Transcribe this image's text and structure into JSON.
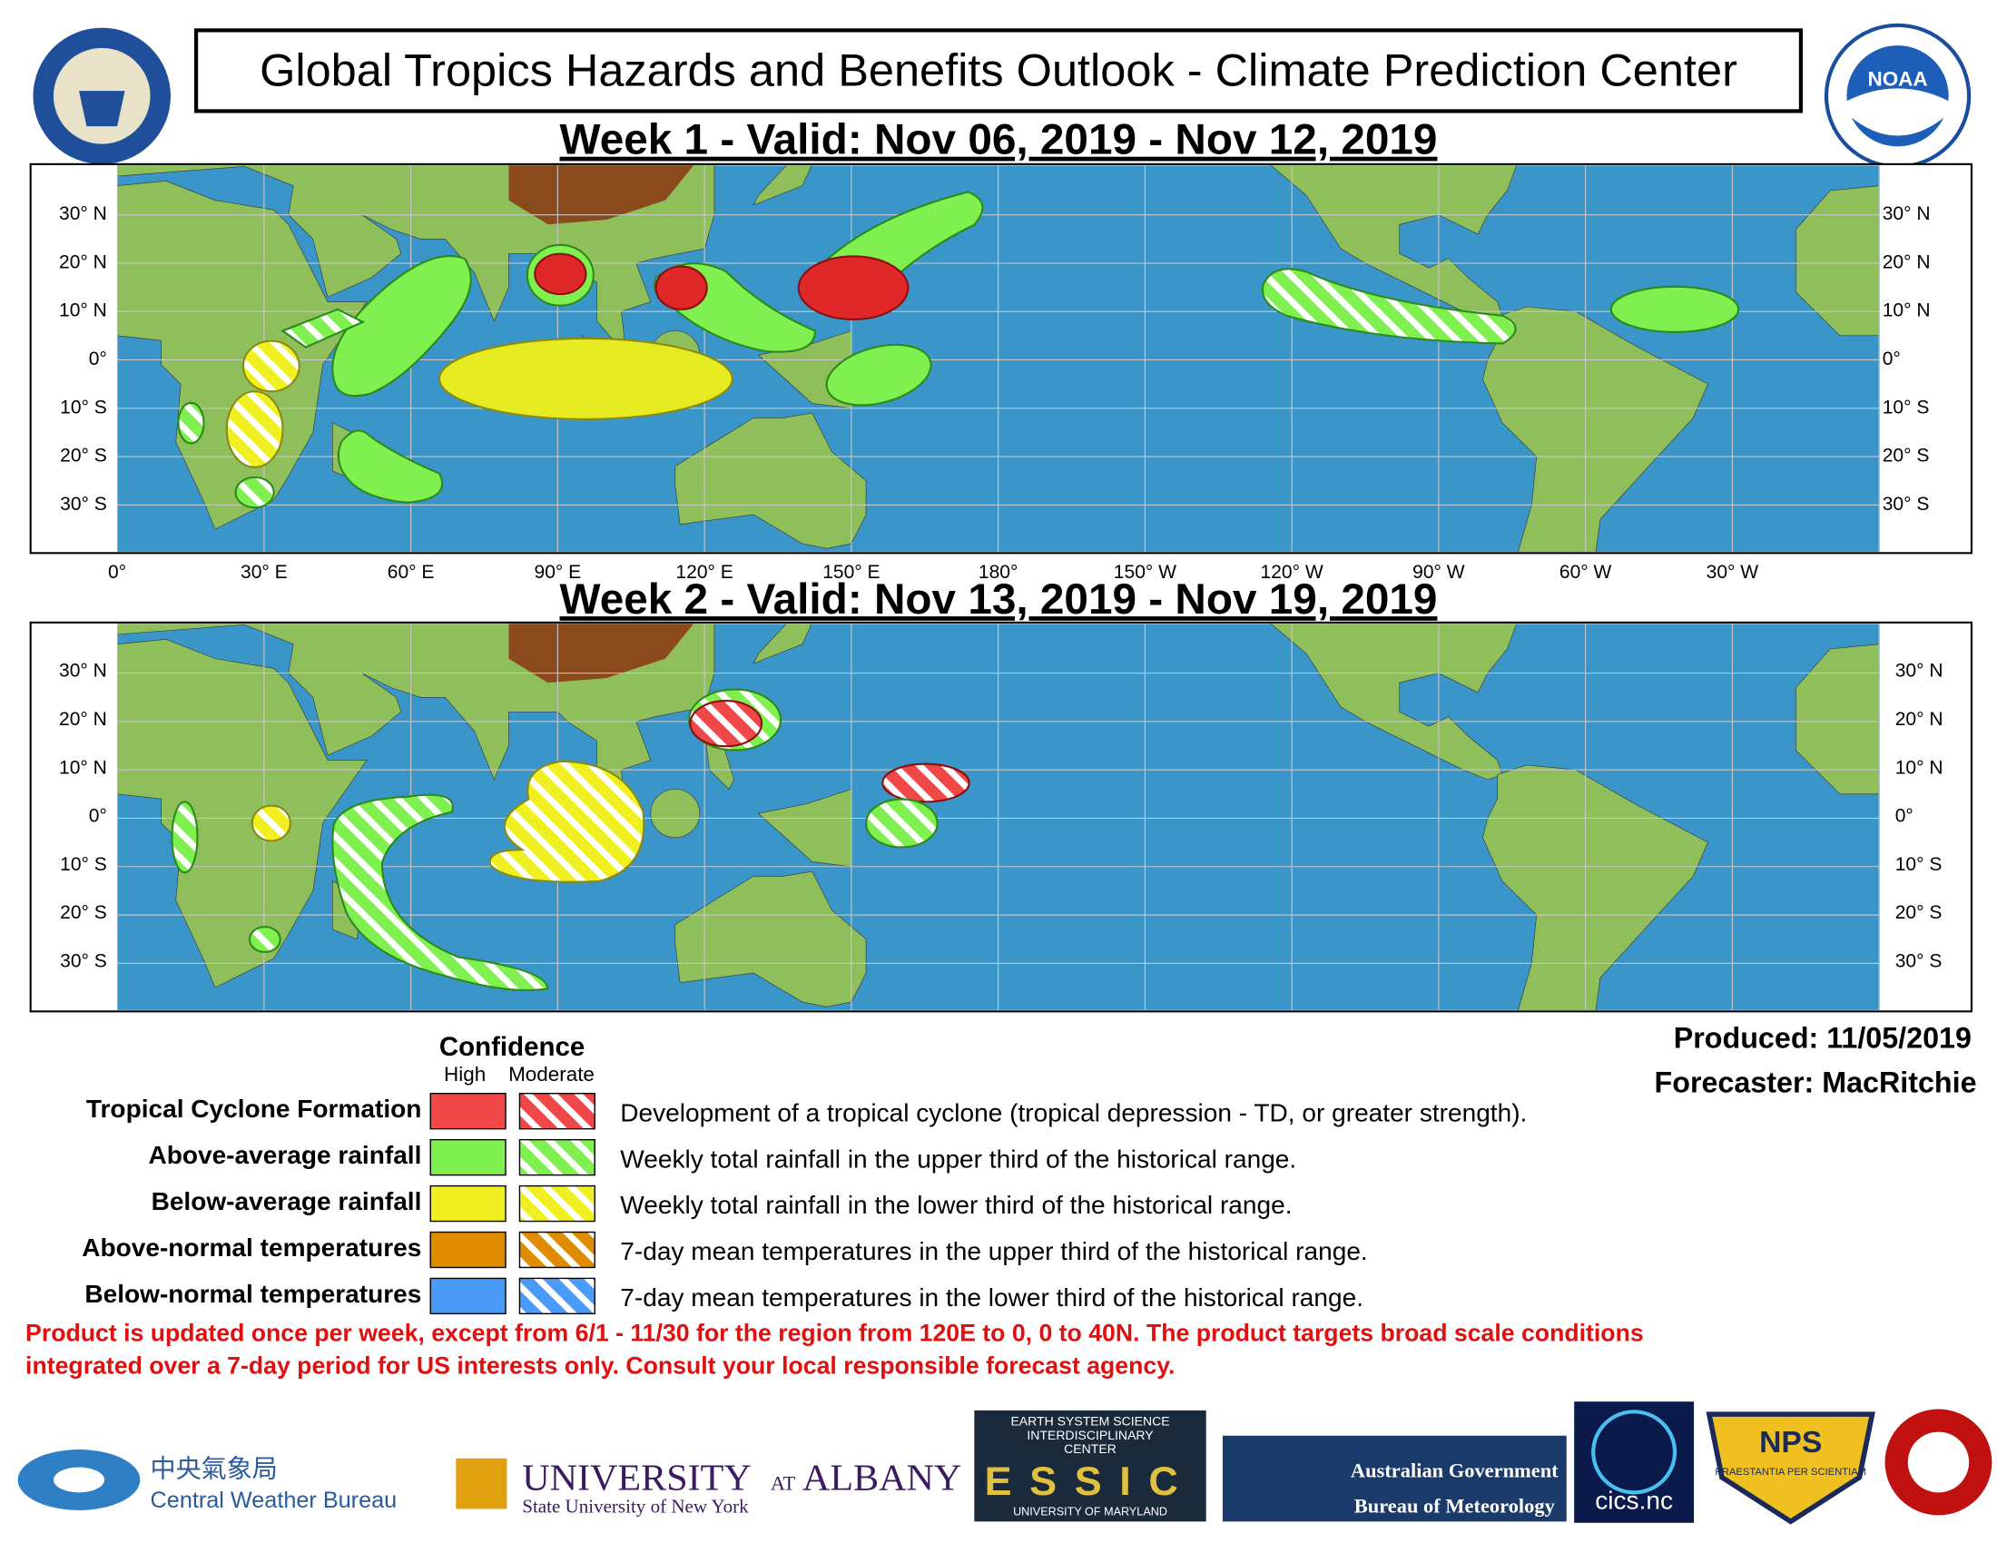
{
  "header": {
    "title": "Global Tropics Hazards and Benefits Outlook - Climate Prediction Center"
  },
  "panels": [
    {
      "title": "Week 1 - Valid: Nov 06, 2019 - Nov 12, 2019"
    },
    {
      "title": "Week 2 - Valid: Nov 13, 2019 - Nov 19, 2019"
    }
  ],
  "map": {
    "latitude_labels": [
      "30° N",
      "20° N",
      "10° N",
      "0°",
      "10° S",
      "20° S",
      "30° S"
    ],
    "longitude_labels": [
      "0°",
      "30° E",
      "60° E",
      "90° E",
      "120° E",
      "150° E",
      "180°",
      "150° W",
      "120° W",
      "90° W",
      "60° W",
      "30° W"
    ]
  },
  "legend": {
    "title": "Confidence",
    "high": "High",
    "moderate": "Moderate",
    "rows": [
      {
        "label": "Tropical Cyclone Formation",
        "description": "Development of a tropical cyclone (tropical depression - TD, or greater strength).",
        "color": "#f04848"
      },
      {
        "label": "Above-average rainfall",
        "description": "Weekly total rainfall in the upper third of the historical range.",
        "color": "#80f050"
      },
      {
        "label": "Below-average rainfall",
        "description": "Weekly total rainfall in the lower third of the historical range.",
        "color": "#f0f020"
      },
      {
        "label": "Above-normal temperatures",
        "description": "7-day mean temperatures in the upper third of the historical range.",
        "color": "#e08c00"
      },
      {
        "label": "Below-normal temperatures",
        "description": "7-day mean temperatures in the lower third of the historical range.",
        "color": "#4a9af8"
      }
    ]
  },
  "produced": "Produced: 11/05/2019",
  "forecaster": "Forecaster: MacRitchie",
  "disclaimer": [
    "Product is updated once per week, except from 6/1 - 11/30 for the region from 120E to 0, 0 to 40N. The product targets broad scale conditions",
    "integrated over a 7-day period for US interests only.  Consult your local responsible forecast agency."
  ],
  "logos": {
    "noaa": "NOAA",
    "cwb_native": "中央氣象局",
    "cwb": "Central Weather Bureau",
    "albany": "UNIVERSITY",
    "albany_at": "AT",
    "albany_name": "ALBANY",
    "albany_sub": "State University of New York",
    "essic_top": "EARTH SYSTEM SCIENCE",
    "essic_mid": "INTERDISCIPLINARY",
    "essic_center": "CENTER",
    "essic": "ESSIC",
    "essic_bottom": "UNIVERSITY OF MARYLAND",
    "bom_1": "Australian Government",
    "bom_2": "Bureau of Meteorology",
    "cics": "cics.nc",
    "nps": "NPS",
    "nps_motto": "PRAESTANTIA PER SCIENTIAM"
  }
}
